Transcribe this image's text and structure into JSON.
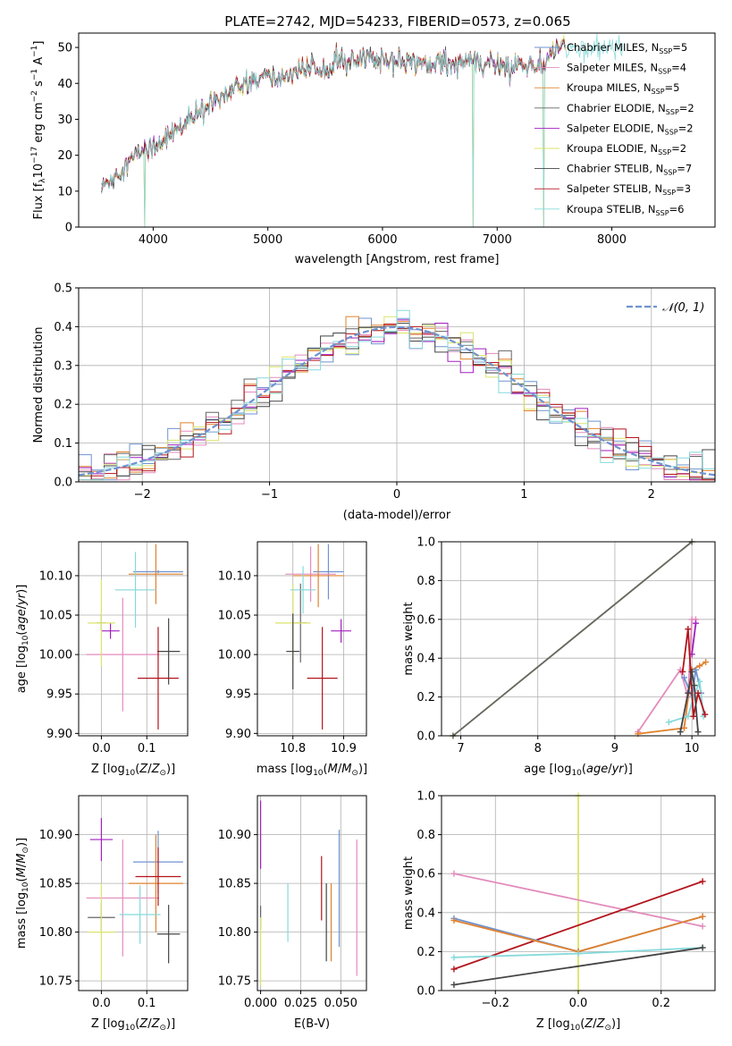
{
  "figure": {
    "title": "PLATE=2742, MJD=54233, FIBERID=0573, z=0.065"
  },
  "colors": {
    "Chabrier MILES": "#6f93d0",
    "Salpeter MILES": "#e38bbd",
    "Kroupa MILES": "#e0822e",
    "Chabrier ELODIE": "#666666",
    "Salpeter ELODIE": "#a21fbf",
    "Kroupa ELODIE": "#dbe46a",
    "Chabrier STELIB": "#444444",
    "Salpeter STELIB": "#b3141c",
    "Kroupa STELIB": "#85d9da"
  },
  "chart_data": [
    {
      "id": "spectrum",
      "type": "line",
      "xlabel": "wavelength [Angstrom, rest frame]",
      "ylabel": "Flux [f_λ 10^-17 erg cm^-2 s^-1 A^-1]",
      "xlim": [
        3350,
        8900
      ],
      "ylim": [
        0,
        54
      ],
      "xticks": [
        4000,
        5000,
        6000,
        7000,
        8000
      ],
      "yticks": [
        0,
        10,
        20,
        30,
        40,
        50
      ],
      "legend_position": "right",
      "series": [
        {
          "name": "Chabrier MILES, N_SSP=5",
          "label": "Chabrier MILES, N",
          "sub": "SSP",
          "tail": "=5"
        },
        {
          "name": "Salpeter MILES, N_SSP=4",
          "label": "Salpeter MILES, N",
          "sub": "SSP",
          "tail": "=4"
        },
        {
          "name": "Kroupa MILES, N_SSP=5",
          "label": "Kroupa MILES, N",
          "sub": "SSP",
          "tail": "=5"
        },
        {
          "name": "Chabrier ELODIE, N_SSP=2",
          "label": "Chabrier ELODIE, N",
          "sub": "SSP",
          "tail": "=2"
        },
        {
          "name": "Salpeter ELODIE, N_SSP=2",
          "label": "Salpeter ELODIE, N",
          "sub": "SSP",
          "tail": "=2"
        },
        {
          "name": "Kroupa ELODIE, N_SSP=2",
          "label": "Kroupa ELODIE, N",
          "sub": "SSP",
          "tail": "=2"
        },
        {
          "name": "Chabrier STELIB, N_SSP=7",
          "label": "Chabrier STELIB, N",
          "sub": "SSP",
          "tail": "=7"
        },
        {
          "name": "Salpeter STELIB, N_SSP=3",
          "label": "Salpeter STELIB, N",
          "sub": "SSP",
          "tail": "=3"
        },
        {
          "name": "Kroupa STELIB, N_SSP=6",
          "label": "Kroupa STELIB, N",
          "sub": "SSP",
          "tail": "=6"
        }
      ],
      "continuum": {
        "x": [
          3550,
          3650,
          3750,
          3850,
          3920,
          4000,
          4100,
          4200,
          4300,
          4400,
          4500,
          4600,
          4700,
          4800,
          4900,
          5000,
          5100,
          5200,
          5300,
          5400,
          5500,
          5600,
          5700,
          5800,
          5900,
          6000,
          6100,
          6200,
          6300,
          6400,
          6500,
          6600,
          6700,
          6800,
          6900,
          7000,
          7100,
          7200,
          7300,
          7400,
          7500,
          7600
        ],
        "y": [
          11,
          14,
          17,
          20,
          22,
          22,
          25,
          27,
          29,
          32,
          35,
          37,
          38,
          40,
          41,
          42,
          41,
          43,
          44,
          44,
          45,
          46,
          46,
          46,
          47,
          47,
          47,
          46,
          46,
          46,
          46,
          46,
          46,
          46,
          45,
          46,
          44,
          46,
          45,
          44,
          50,
          50
        ]
      },
      "drops": [
        3925,
        6790,
        7405
      ],
      "series_extent": [
        [
          3550,
          7600
        ],
        [
          3550,
          7600
        ],
        [
          3550,
          7600
        ],
        [
          3550,
          7600
        ],
        [
          3550,
          7600
        ],
        [
          3550,
          7600
        ],
        [
          3550,
          7600
        ],
        [
          3550,
          7600
        ],
        [
          3550,
          8100
        ]
      ]
    },
    {
      "id": "residual_histogram",
      "type": "histogram",
      "xlabel": "(data-model)/error",
      "ylabel": "Normed distribution",
      "xlim": [
        -2.5,
        2.5
      ],
      "ylim": [
        0,
        0.5
      ],
      "xticks": [
        -2,
        -1,
        0,
        1,
        2
      ],
      "yticks": [
        0.0,
        0.1,
        0.2,
        0.3,
        0.4,
        0.5
      ],
      "bin_width": 0.1,
      "reference_curve": {
        "name": "N(0,1)",
        "style": "dashed",
        "color": "#6f93d0"
      },
      "legend_position": "top-right"
    },
    {
      "id": "age_vs_Z",
      "type": "errorbar",
      "xlabel": "Z [log10(Z/Z_sun)]",
      "ylabel": "age [log10(age/yr)]",
      "xlim": [
        -0.05,
        0.19
      ],
      "ylim": [
        9.897,
        10.143
      ],
      "xticks": [
        0.0,
        0.1
      ],
      "yticks": [
        9.9,
        9.95,
        10.0,
        10.05,
        10.1
      ],
      "points": [
        {
          "series": "Chabrier MILES",
          "x": 0.125,
          "xerr": 0.055,
          "y": 10.105,
          "yerr": 0.002
        },
        {
          "series": "Salpeter MILES",
          "x": 0.047,
          "xerr": 0.08,
          "y": 10.0,
          "yerr": 0.072
        },
        {
          "series": "Kroupa MILES",
          "x": 0.12,
          "xerr": 0.06,
          "y": 10.102,
          "yerr": 0.038
        },
        {
          "series": "Chabrier ELODIE",
          "x": 0.0,
          "xerr": 0.01,
          "y": 10.04,
          "yerr": 0.01
        },
        {
          "series": "Salpeter ELODIE",
          "x": 0.02,
          "xerr": 0.02,
          "y": 10.03,
          "yerr": 0.01
        },
        {
          "series": "Kroupa ELODIE",
          "x": 0.0,
          "xerr": 0.03,
          "y": 10.04,
          "yerr": 0.055
        },
        {
          "series": "Chabrier STELIB",
          "x": 0.148,
          "xerr": 0.025,
          "y": 10.004,
          "yerr": 0.042
        },
        {
          "series": "Salpeter STELIB",
          "x": 0.125,
          "xerr": 0.045,
          "y": 9.97,
          "yerr": 0.065
        },
        {
          "series": "Kroupa STELIB",
          "x": 0.075,
          "xerr": 0.045,
          "y": 10.082,
          "yerr": 0.048
        }
      ]
    },
    {
      "id": "age_vs_mass",
      "type": "errorbar",
      "xlabel": "mass [log10(M/M_sun)]",
      "ylabel": "",
      "xlim": [
        10.73,
        10.945
      ],
      "ylim": [
        9.897,
        10.143
      ],
      "xticks": [
        10.8,
        10.9
      ],
      "yticks": [
        9.9,
        9.95,
        10.0,
        10.05,
        10.1
      ],
      "points": [
        {
          "series": "Chabrier MILES",
          "x": 10.87,
          "xerr": 0.03,
          "y": 10.105,
          "yerr": 0.035
        },
        {
          "series": "Salpeter MILES",
          "x": 10.835,
          "xerr": 0.05,
          "y": 10.102,
          "yerr": 0.035
        },
        {
          "series": "Kroupa MILES",
          "x": 10.85,
          "xerr": 0.05,
          "y": 10.1,
          "yerr": 0.04
        },
        {
          "series": "Chabrier ELODIE",
          "x": 10.815,
          "xerr": 0.012,
          "y": 10.04,
          "yerr": 0.05
        },
        {
          "series": "Salpeter ELODIE",
          "x": 10.895,
          "xerr": 0.02,
          "y": 10.03,
          "yerr": 0.015
        },
        {
          "series": "Kroupa ELODIE",
          "x": 10.8,
          "xerr": 0.035,
          "y": 10.04,
          "yerr": 0.05
        },
        {
          "series": "Chabrier STELIB",
          "x": 10.8,
          "xerr": 0.013,
          "y": 10.004,
          "yerr": 0.048
        },
        {
          "series": "Salpeter STELIB",
          "x": 10.858,
          "xerr": 0.03,
          "y": 9.97,
          "yerr": 0.065
        },
        {
          "series": "Kroupa STELIB",
          "x": 10.82,
          "xerr": 0.025,
          "y": 10.082,
          "yerr": 0.03
        }
      ]
    },
    {
      "id": "mass_weight_vs_age",
      "type": "line",
      "xlabel": "age [log10(age/yr)]",
      "ylabel": "mass weight",
      "xlim": [
        6.75,
        10.3
      ],
      "ylim": [
        0,
        1
      ],
      "xticks": [
        7,
        8,
        9,
        10
      ],
      "yticks": [
        0.0,
        0.2,
        0.4,
        0.6,
        0.8,
        1.0
      ],
      "series": [
        {
          "name": "Kroupa ELODIE",
          "x": [
            6.9,
            10.0
          ],
          "y": [
            0.0,
            1.0
          ]
        },
        {
          "name": "Chabrier ELODIE",
          "x": [
            6.9,
            10.0
          ],
          "y": [
            0.0,
            1.0
          ]
        },
        {
          "name": "Salpeter MILES",
          "x": [
            9.3,
            9.85,
            9.95,
            10.0,
            10.05
          ],
          "y": [
            0.02,
            0.34,
            0.2,
            0.6,
            0.6
          ]
        },
        {
          "name": "Kroupa MILES",
          "x": [
            9.3,
            9.9,
            10.0,
            10.1,
            10.18
          ],
          "y": [
            0.01,
            0.04,
            0.34,
            0.36,
            0.38
          ]
        },
        {
          "name": "Salpeter ELODIE",
          "x": [
            10.0,
            10.05
          ],
          "y": [
            0.42,
            0.58
          ]
        },
        {
          "name": "Chabrier MILES",
          "x": [
            9.9,
            10.0,
            10.05,
            10.12
          ],
          "y": [
            0.3,
            0.2,
            0.34,
            0.22
          ]
        },
        {
          "name": "Kroupa STELIB",
          "x": [
            9.7,
            9.95,
            10.02,
            10.1,
            10.15
          ],
          "y": [
            0.07,
            0.1,
            0.2,
            0.28,
            0.1
          ]
        },
        {
          "name": "Salpeter STELIB",
          "x": [
            9.88,
            9.95,
            10.02,
            10.08,
            10.17
          ],
          "y": [
            0.33,
            0.55,
            0.1,
            0.22,
            0.11
          ]
        },
        {
          "name": "Chabrier STELIB",
          "x": [
            9.85,
            9.95,
            10.0,
            10.03,
            10.08
          ],
          "y": [
            0.02,
            0.22,
            0.33,
            0.26,
            0.02
          ]
        }
      ]
    },
    {
      "id": "mass_vs_Z",
      "type": "errorbar",
      "xlabel": "Z [log10(Z/Z_sun)]",
      "ylabel": "mass [log10(M/M_sun)]",
      "xlim": [
        -0.05,
        0.19
      ],
      "ylim": [
        10.74,
        10.94
      ],
      "xticks": [
        0.0,
        0.1
      ],
      "yticks": [
        10.75,
        10.8,
        10.85,
        10.9
      ],
      "points": [
        {
          "series": "Chabrier MILES",
          "x": 0.125,
          "xerr": 0.055,
          "y": 10.872,
          "yerr": 0.032
        },
        {
          "series": "Salpeter MILES",
          "x": 0.047,
          "xerr": 0.08,
          "y": 10.835,
          "yerr": 0.06
        },
        {
          "series": "Kroupa MILES",
          "x": 0.12,
          "xerr": 0.06,
          "y": 10.85,
          "yerr": 0.05
        },
        {
          "series": "Chabrier ELODIE",
          "x": 0.0,
          "xerr": 0.03,
          "y": 10.815,
          "yerr": 0.015
        },
        {
          "series": "Salpeter ELODIE",
          "x": 0.0,
          "xerr": 0.025,
          "y": 10.895,
          "yerr": 0.022
        },
        {
          "series": "Kroupa ELODIE",
          "x": 0.0,
          "xerr": 0.03,
          "y": 10.8,
          "yerr": 0.05
        },
        {
          "series": "Chabrier STELIB",
          "x": 0.148,
          "xerr": 0.025,
          "y": 10.798,
          "yerr": 0.03
        },
        {
          "series": "Salpeter STELIB",
          "x": 0.125,
          "xerr": 0.05,
          "y": 10.857,
          "yerr": 0.03
        },
        {
          "series": "Kroupa STELIB",
          "x": 0.085,
          "xerr": 0.045,
          "y": 10.818,
          "yerr": 0.03
        }
      ]
    },
    {
      "id": "mass_vs_EBV",
      "type": "errorbar",
      "xlabel": "E(B-V)",
      "ylabel": "",
      "xlim": [
        -0.002,
        0.066
      ],
      "ylim": [
        10.74,
        10.94
      ],
      "xticks": [
        0.0,
        0.025,
        0.05
      ],
      "yticks": [
        10.75,
        10.8,
        10.85,
        10.9
      ],
      "points": [
        {
          "series": "Chabrier MILES",
          "x": 0.049,
          "y": 10.845,
          "yerr": 0.06
        },
        {
          "series": "Salpeter MILES",
          "x": 0.06,
          "y": 10.825,
          "yerr": 0.07
        },
        {
          "series": "Kroupa MILES",
          "x": 0.044,
          "y": 10.81,
          "yerr": 0.04
        },
        {
          "series": "Chabrier ELODIE",
          "x": 0.0,
          "y": 10.815,
          "yerr": 0.012
        },
        {
          "series": "Salpeter ELODIE",
          "x": 0.0,
          "y": 10.9,
          "yerr": 0.035
        },
        {
          "series": "Kroupa ELODIE",
          "x": 0.0,
          "y": 10.78,
          "yerr": 0.035
        },
        {
          "series": "Chabrier STELIB",
          "x": 0.041,
          "y": 10.81,
          "yerr": 0.04
        },
        {
          "series": "Salpeter STELIB",
          "x": 0.038,
          "y": 10.845,
          "yerr": 0.033
        },
        {
          "series": "Kroupa STELIB",
          "x": 0.017,
          "y": 10.82,
          "yerr": 0.03
        }
      ]
    },
    {
      "id": "mass_weight_vs_Z",
      "type": "line",
      "xlabel": "Z [log10(Z/Z_sun)]",
      "ylabel": "mass weight",
      "xlim": [
        -0.33,
        0.33
      ],
      "ylim": [
        0,
        1
      ],
      "xticks": [
        -0.2,
        0.0,
        0.2
      ],
      "yticks": [
        0.0,
        0.2,
        0.4,
        0.6,
        0.8,
        1.0
      ],
      "series": [
        {
          "name": "Kroupa ELODIE",
          "x": [
            0.0,
            0.0
          ],
          "y": [
            0.0,
            1.0
          ]
        },
        {
          "name": "Salpeter MILES",
          "x": [
            -0.3,
            0.3
          ],
          "y": [
            0.6,
            0.33
          ]
        },
        {
          "name": "Salpeter STELIB",
          "x": [
            -0.3,
            0.3
          ],
          "y": [
            0.11,
            0.56
          ]
        },
        {
          "name": "Chabrier MILES",
          "x": [
            -0.3,
            0.0,
            0.3
          ],
          "y": [
            0.37,
            0.2,
            0.38
          ]
        },
        {
          "name": "Kroupa MILES",
          "x": [
            -0.3,
            0.0,
            0.3
          ],
          "y": [
            0.36,
            0.2,
            0.38
          ]
        },
        {
          "name": "Kroupa STELIB",
          "x": [
            -0.3,
            0.0,
            0.3
          ],
          "y": [
            0.17,
            0.19,
            0.22
          ]
        },
        {
          "name": "Chabrier STELIB",
          "x": [
            -0.3,
            0.3
          ],
          "y": [
            0.03,
            0.22
          ]
        }
      ]
    }
  ]
}
